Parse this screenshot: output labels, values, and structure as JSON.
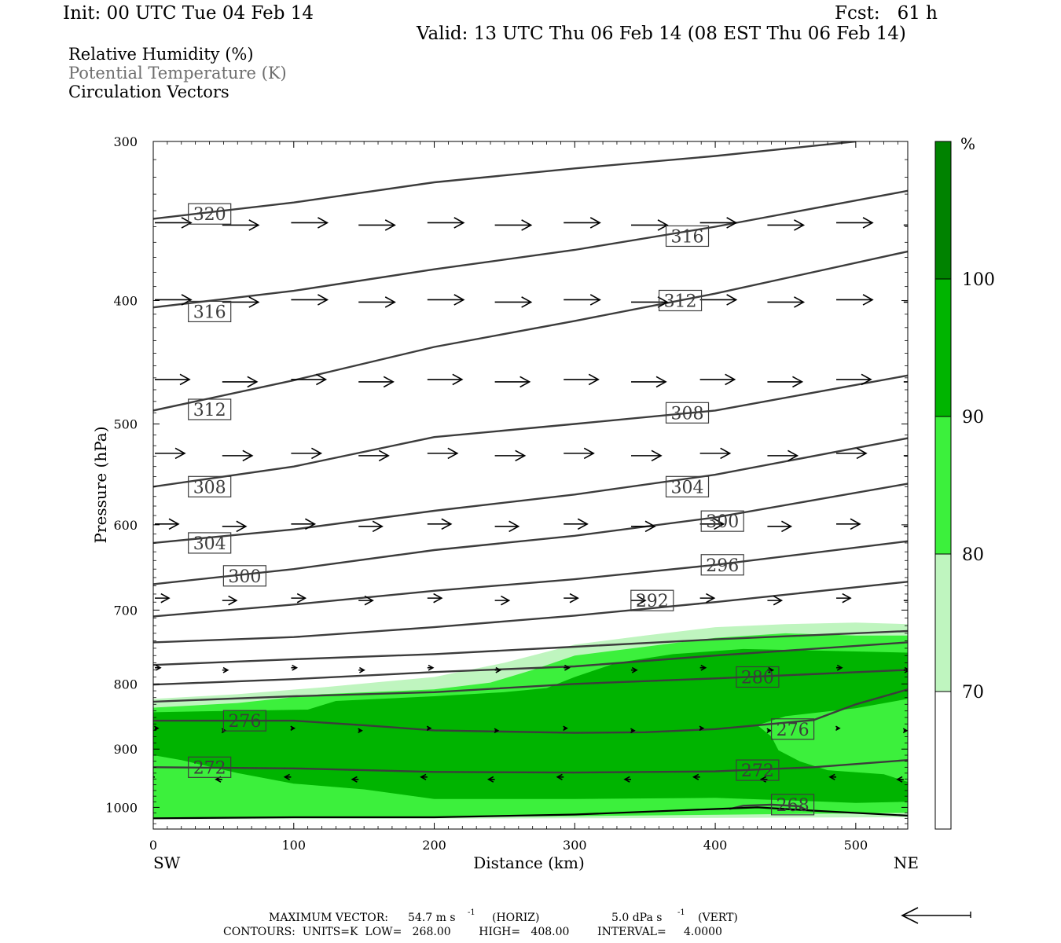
{
  "header": {
    "init": "Init: 00 UTC Tue 04 Feb 14",
    "fcst": "Fcst:   61 h",
    "valid": "Valid: 13 UTC Thu 06 Feb 14 (08 EST Thu 06 Feb 14)"
  },
  "legend": {
    "rh": "Relative Humidity (%)",
    "theta": "Potential Temperature (K)",
    "vectors": "Circulation Vectors"
  },
  "chart_data": {
    "type": "heatmap",
    "title": "",
    "xlabel": "Distance (km)",
    "ylabel": "Pressure (hPa)",
    "xlim": [
      0,
      537
    ],
    "ylim": [
      1040,
      300
    ],
    "y_scale": "log",
    "x_ticks": [
      0,
      100,
      200,
      300,
      400,
      500
    ],
    "x_tick_labels": [
      "0",
      "100",
      "200",
      "300",
      "400",
      "500"
    ],
    "y_ticks": [
      300,
      400,
      500,
      600,
      700,
      800,
      900,
      1000
    ],
    "y_tick_labels": [
      "300",
      "400",
      "500",
      "600",
      "700",
      "800",
      "900",
      "1000"
    ],
    "x_end_labels": [
      "SW",
      "NE"
    ],
    "colorbar": {
      "unit": "%",
      "levels": [
        70,
        80,
        90,
        100
      ],
      "level_labels": [
        "70",
        "80",
        "90",
        "100"
      ],
      "colors": [
        "#ffffff",
        "#bff5bf",
        "#3cf03c",
        "#00b400",
        "#008200"
      ]
    },
    "rh_regions": [
      {
        "level": 70,
        "color": "#bff5bf",
        "points": [
          [
            0,
            822
          ],
          [
            60,
            815
          ],
          [
            120,
            805
          ],
          [
            200,
            790
          ],
          [
            250,
            770
          ],
          [
            300,
            745
          ],
          [
            350,
            733
          ],
          [
            400,
            722
          ],
          [
            450,
            718
          ],
          [
            500,
            716
          ],
          [
            537,
            718
          ],
          [
            537,
            1018
          ],
          [
            300,
            1020
          ],
          [
            0,
            1022
          ]
        ]
      },
      {
        "level": 80,
        "color": "#3cf03c",
        "points": [
          [
            0,
            835
          ],
          [
            60,
            828
          ],
          [
            120,
            815
          ],
          [
            200,
            808
          ],
          [
            240,
            798
          ],
          [
            270,
            780
          ],
          [
            300,
            760
          ],
          [
            350,
            748
          ],
          [
            400,
            736
          ],
          [
            450,
            730
          ],
          [
            500,
            733
          ],
          [
            537,
            733
          ],
          [
            537,
            1010
          ],
          [
            300,
            1016
          ],
          [
            150,
            1018
          ],
          [
            0,
            1020
          ]
        ]
      },
      {
        "level": 90,
        "color": "#00b400",
        "points": [
          [
            0,
            842
          ],
          [
            50,
            840
          ],
          [
            110,
            838
          ],
          [
            130,
            825
          ],
          [
            200,
            818
          ],
          [
            250,
            812
          ],
          [
            280,
            806
          ],
          [
            300,
            790
          ],
          [
            330,
            770
          ],
          [
            370,
            758
          ],
          [
            420,
            751
          ],
          [
            470,
            753
          ],
          [
            537,
            756
          ],
          [
            537,
            822
          ],
          [
            500,
            836
          ],
          [
            450,
            848
          ],
          [
            430,
            862
          ],
          [
            440,
            880
          ],
          [
            445,
            902
          ],
          [
            460,
            920
          ],
          [
            480,
            935
          ],
          [
            520,
            942
          ],
          [
            537,
            955
          ],
          [
            537,
            990
          ],
          [
            500,
            992
          ],
          [
            470,
            989
          ],
          [
            400,
            983
          ],
          [
            300,
            985
          ],
          [
            200,
            985
          ],
          [
            150,
            968
          ],
          [
            100,
            958
          ],
          [
            60,
            940
          ],
          [
            20,
            918
          ],
          [
            0,
            910
          ]
        ]
      }
    ],
    "theta_contours": [
      {
        "label": "320",
        "label_at": [
          25,
          342
        ],
        "points": [
          [
            0,
            345
          ],
          [
            100,
            335
          ],
          [
            200,
            323
          ],
          [
            300,
            315
          ],
          [
            400,
            308
          ],
          [
            500,
            300
          ]
        ]
      },
      {
        "label": "316",
        "label_at": [
          25,
          408
        ],
        "points": [
          [
            0,
            405
          ],
          [
            100,
            393
          ],
          [
            200,
            378
          ],
          [
            300,
            365
          ],
          [
            400,
            350
          ],
          [
            537,
            328
          ]
        ]
      },
      {
        "label": "316",
        "label_at": [
          365,
          356
        ],
        "points": []
      },
      {
        "label": "312",
        "label_at": [
          25,
          487
        ],
        "points": [
          [
            0,
            488
          ],
          [
            100,
            462
          ],
          [
            200,
            435
          ],
          [
            300,
            415
          ],
          [
            400,
            395
          ],
          [
            537,
            366
          ]
        ]
      },
      {
        "label": "312",
        "label_at": [
          360,
          400
        ],
        "points": []
      },
      {
        "label": "308",
        "label_at": [
          25,
          560
        ],
        "points": [
          [
            0,
            560
          ],
          [
            100,
            540
          ],
          [
            200,
            512
          ],
          [
            300,
            500
          ],
          [
            400,
            488
          ],
          [
            537,
            458
          ]
        ]
      },
      {
        "label": "308",
        "label_at": [
          365,
          490
        ],
        "points": []
      },
      {
        "label": "304",
        "label_at": [
          25,
          620
        ],
        "points": [
          [
            0,
            620
          ],
          [
            100,
            605
          ],
          [
            200,
            585
          ],
          [
            300,
            568
          ],
          [
            400,
            548
          ],
          [
            537,
            513
          ]
        ]
      },
      {
        "label": "304",
        "label_at": [
          365,
          560
        ],
        "points": []
      },
      {
        "label": "300",
        "label_at": [
          50,
          658
        ],
        "points": [
          [
            0,
            668
          ],
          [
            100,
            650
          ],
          [
            200,
            628
          ],
          [
            300,
            612
          ],
          [
            400,
            592
          ],
          [
            537,
            557
          ]
        ]
      },
      {
        "label": "300",
        "label_at": [
          390,
          596
        ],
        "points": []
      },
      {
        "label": "296",
        "label_at": [
          390,
          645
        ],
        "points": [
          [
            0,
            708
          ],
          [
            100,
            693
          ],
          [
            200,
            676
          ],
          [
            300,
            662
          ],
          [
            400,
            645
          ],
          [
            537,
            618
          ]
        ]
      },
      {
        "label": "292",
        "label_at": [
          340,
          688
        ],
        "points": [
          [
            0,
            742
          ],
          [
            100,
            735
          ],
          [
            200,
            722
          ],
          [
            300,
            707
          ],
          [
            400,
            690
          ],
          [
            537,
            665
          ]
        ]
      },
      {
        "label": "",
        "label_at": null,
        "points": [
          [
            0,
            773
          ],
          [
            100,
            765
          ],
          [
            200,
            758
          ],
          [
            300,
            748
          ],
          [
            400,
            738
          ],
          [
            537,
            727
          ]
        ]
      },
      {
        "label": "",
        "label_at": null,
        "points": [
          [
            0,
            801
          ],
          [
            100,
            793
          ],
          [
            200,
            783
          ],
          [
            300,
            775
          ],
          [
            400,
            760
          ],
          [
            537,
            742
          ]
        ]
      },
      {
        "label": "280",
        "label_at": [
          415,
          790
        ],
        "points": [
          [
            0,
            826
          ],
          [
            100,
            818
          ],
          [
            200,
            812
          ],
          [
            300,
            800
          ],
          [
            400,
            792
          ],
          [
            537,
            780
          ]
        ]
      },
      {
        "label": "276",
        "label_at": [
          50,
          855
        ],
        "points": [
          [
            0,
            855
          ],
          [
            100,
            855
          ],
          [
            150,
            862
          ],
          [
            200,
            870
          ],
          [
            300,
            874
          ],
          [
            350,
            873
          ],
          [
            400,
            868
          ],
          [
            430,
            862
          ],
          [
            470,
            854
          ],
          [
            500,
            830
          ],
          [
            537,
            808
          ]
        ]
      },
      {
        "label": "276",
        "label_at": [
          440,
          868
        ],
        "points": []
      },
      {
        "label": "272",
        "label_at": [
          25,
          930
        ],
        "points": [
          [
            0,
            930
          ],
          [
            100,
            932
          ],
          [
            200,
            938
          ],
          [
            300,
            939
          ],
          [
            400,
            937
          ],
          [
            470,
            930
          ],
          [
            537,
            918
          ]
        ]
      },
      {
        "label": "272",
        "label_at": [
          415,
          935
        ],
        "points": []
      },
      {
        "label": "268",
        "label_at": [
          440,
          995
        ],
        "points": [
          [
            410,
            1003
          ],
          [
            420,
            997
          ],
          [
            440,
            995
          ],
          [
            460,
            998
          ],
          [
            465,
            1005
          ]
        ]
      }
    ],
    "surface": [
      [
        0,
        1020
      ],
      [
        100,
        1018
      ],
      [
        200,
        1018
      ],
      [
        300,
        1013
      ],
      [
        400,
        1003
      ],
      [
        430,
        1000
      ],
      [
        470,
        1006
      ],
      [
        537,
        1015
      ]
    ],
    "vector_rows": [
      {
        "p": 348,
        "len": 46
      },
      {
        "p": 400,
        "len": 46
      },
      {
        "p": 462,
        "len": 44
      },
      {
        "p": 528,
        "len": 38
      },
      {
        "p": 600,
        "len": 30
      },
      {
        "p": 686,
        "len": 18
      },
      {
        "p": 778,
        "len": 7
      },
      {
        "p": 868,
        "len": 4
      },
      {
        "p": 948,
        "len": -8
      }
    ],
    "vector_x": [
      0,
      48,
      97,
      145,
      194,
      242,
      291,
      339,
      388,
      436,
      485,
      533
    ],
    "footer": {
      "max_vector_label": "MAXIMUM VECTOR:",
      "max_horiz": "54.7 m s",
      "max_horiz_unit": "(HORIZ)",
      "max_vert": "5.0 dPa s",
      "max_vert_unit": "(VERT)",
      "exponent": "-1",
      "contours": "CONTOURS:  UNITS=K  LOW=   268.00        HIGH=   408.00        INTERVAL=     4.0000"
    }
  }
}
